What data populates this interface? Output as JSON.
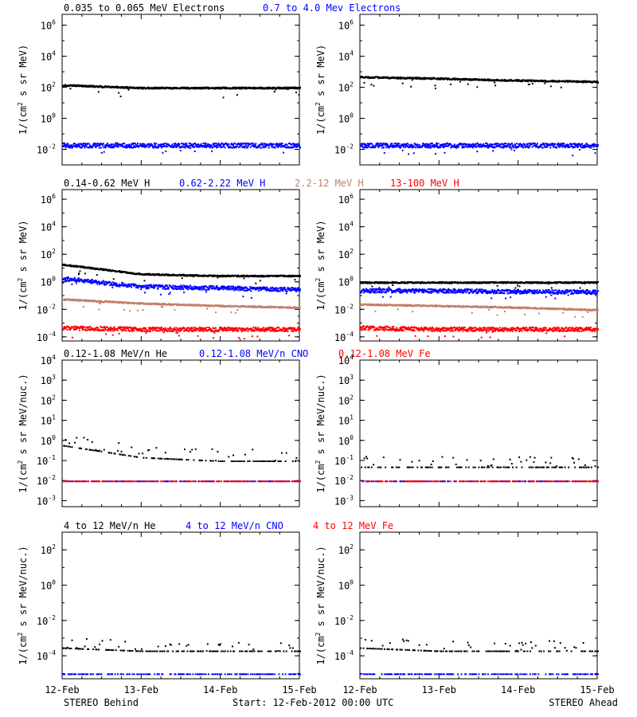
{
  "colors": {
    "black": "#000000",
    "blue": "#0000ff",
    "tan": "#c47f6a",
    "red": "#ff0000"
  },
  "rows": [
    {
      "legend": [
        {
          "text": "0.035 to 0.065 MeV Electrons",
          "color": "black"
        },
        {
          "text": "0.7 to 4.0 Mev Electrons",
          "color": "blue"
        }
      ],
      "ylabel_html": "1/(cm<tspan dy=\"-5\" font-size=\"8\">2</tspan><tspan dy=\"5\"> s sr MeV)</tspan>",
      "ylabel_plain": "1/(cm2 s sr MeV)",
      "ticks": [
        {
          "base": "10",
          "exp": "6",
          "log": 6
        },
        {
          "base": "10",
          "exp": "4",
          "log": 4
        },
        {
          "base": "10",
          "exp": "2",
          "log": 2
        },
        {
          "base": "10",
          "exp": "0",
          "log": 0
        },
        {
          "base": "10",
          "exp": "-2",
          "log": -2
        }
      ]
    },
    {
      "legend": [
        {
          "text": "0.14-0.62 MeV H",
          "color": "black"
        },
        {
          "text": "0.62-2.22 MeV H",
          "color": "blue"
        },
        {
          "text": "2.2-12 MeV H",
          "color": "tan"
        },
        {
          "text": "13-100 MeV H",
          "color": "red"
        }
      ],
      "ylabel_plain": "1/(cm2 s sr MeV)",
      "ticks": [
        {
          "base": "10",
          "exp": "6",
          "log": 6
        },
        {
          "base": "10",
          "exp": "4",
          "log": 4
        },
        {
          "base": "10",
          "exp": "2",
          "log": 2
        },
        {
          "base": "10",
          "exp": "0",
          "log": 0
        },
        {
          "base": "10",
          "exp": "-2",
          "log": -2
        },
        {
          "base": "10",
          "exp": "-4",
          "log": -4
        }
      ]
    },
    {
      "legend": [
        {
          "text": "0.12-1.08 MeV/n He",
          "color": "black"
        },
        {
          "text": "0.12-1.08 MeV/n CNO",
          "color": "blue"
        },
        {
          "text": "0.12-1.08 MeV Fe",
          "color": "red"
        }
      ],
      "ylabel_plain": "1/(cm2 s sr MeV/nuc.)",
      "ticks": [
        {
          "base": "10",
          "exp": "4",
          "log": 4
        },
        {
          "base": "10",
          "exp": "3",
          "log": 3
        },
        {
          "base": "10",
          "exp": "2",
          "log": 2
        },
        {
          "base": "10",
          "exp": "1",
          "log": 1
        },
        {
          "base": "10",
          "exp": "0",
          "log": 0
        },
        {
          "base": "10",
          "exp": "-1",
          "log": -1
        },
        {
          "base": "10",
          "exp": "-2",
          "log": -2
        },
        {
          "base": "10",
          "exp": "-3",
          "log": -3
        }
      ]
    },
    {
      "legend": [
        {
          "text": "4 to 12 MeV/n He",
          "color": "black"
        },
        {
          "text": "4 to 12 MeV/n CNO",
          "color": "blue"
        },
        {
          "text": "4 to 12 MeV Fe",
          "color": "red"
        }
      ],
      "ylabel_plain": "1/(cm2 s sr MeV/nuc.)",
      "ticks": [
        {
          "base": "10",
          "exp": "2",
          "log": 2
        },
        {
          "base": "10",
          "exp": "0",
          "log": 0
        },
        {
          "base": "10",
          "exp": "-2",
          "log": -2
        },
        {
          "base": "10",
          "exp": "-4",
          "log": -4
        }
      ]
    }
  ],
  "x_ticks": [
    "12-Feb",
    "13-Feb",
    "14-Feb",
    "15-Feb"
  ],
  "footer": {
    "left": "STEREO Behind",
    "center": "Start: 12-Feb-2012 00:00 UTC",
    "right": "STEREO Ahead"
  },
  "chart_data": [
    {
      "type": "scatter",
      "title": "",
      "xlabel": "",
      "ylabel": "1/(cm2 s sr MeV)",
      "yscale": "log",
      "ylim": [
        0.001,
        5000000
      ],
      "x": [
        "12-Feb",
        "13-Feb",
        "14-Feb",
        "15-Feb"
      ],
      "panels": [
        {
          "name": "STEREO Behind",
          "series": [
            {
              "name": "0.035 to 0.065 MeV Electrons",
              "color": "black",
              "points": [
                [
                  "12-Feb",
                  150
                ],
                [
                  "13-Feb",
                  100
                ],
                [
                  "14-Feb",
                  100
                ],
                [
                  "15-Feb",
                  100
                ]
              ]
            },
            {
              "name": "0.7 to 4.0 Mev Electrons",
              "color": "blue",
              "points": [
                [
                  "12-Feb",
                  0.02
                ],
                [
                  "13-Feb",
                  0.02
                ],
                [
                  "14-Feb",
                  0.02
                ],
                [
                  "15-Feb",
                  0.02
                ]
              ]
            }
          ]
        },
        {
          "name": "STEREO Ahead",
          "series": [
            {
              "name": "0.035 to 0.065 MeV Electrons",
              "color": "black",
              "points": [
                [
                  "12-Feb",
                  500
                ],
                [
                  "13-Feb",
                  400
                ],
                [
                  "14-Feb",
                  300
                ],
                [
                  "15-Feb",
                  250
                ]
              ]
            },
            {
              "name": "0.7 to 4.0 Mev Electrons",
              "color": "blue",
              "points": [
                [
                  "12-Feb",
                  0.02
                ],
                [
                  "13-Feb",
                  0.02
                ],
                [
                  "14-Feb",
                  0.02
                ],
                [
                  "15-Feb",
                  0.02
                ]
              ]
            }
          ]
        }
      ]
    },
    {
      "type": "scatter",
      "title": "",
      "xlabel": "",
      "ylabel": "1/(cm2 s sr MeV)",
      "yscale": "log",
      "ylim": [
        5e-05,
        5000000
      ],
      "x": [
        "12-Feb",
        "13-Feb",
        "14-Feb",
        "15-Feb"
      ],
      "panels": [
        {
          "name": "STEREO Behind",
          "series": [
            {
              "name": "0.14-0.62 MeV H",
              "color": "black",
              "points": [
                [
                  "12-Feb",
                  20
                ],
                [
                  "13-Feb",
                  4
                ],
                [
                  "14-Feb",
                  3
                ],
                [
                  "15-Feb",
                  3
                ]
              ]
            },
            {
              "name": "0.62-2.22 MeV H",
              "color": "blue",
              "points": [
                [
                  "12-Feb",
                  2
                ],
                [
                  "13-Feb",
                  0.5
                ],
                [
                  "14-Feb",
                  0.4
                ],
                [
                  "15-Feb",
                  0.3
                ]
              ]
            },
            {
              "name": "2.2-12 MeV H",
              "color": "tan",
              "points": [
                [
                  "12-Feb",
                  0.06
                ],
                [
                  "13-Feb",
                  0.03
                ],
                [
                  "14-Feb",
                  0.02
                ],
                [
                  "15-Feb",
                  0.015
                ]
              ]
            },
            {
              "name": "13-100 MeV H",
              "color": "red",
              "points": [
                [
                  "12-Feb",
                  0.0005
                ],
                [
                  "13-Feb",
                  0.0004
                ],
                [
                  "14-Feb",
                  0.0004
                ],
                [
                  "15-Feb",
                  0.0004
                ]
              ]
            }
          ]
        },
        {
          "name": "STEREO Ahead",
          "series": [
            {
              "name": "0.14-0.62 MeV H",
              "color": "black",
              "points": [
                [
                  "12-Feb",
                  1
                ],
                [
                  "13-Feb",
                  1
                ],
                [
                  "14-Feb",
                  1
                ],
                [
                  "15-Feb",
                  1
                ]
              ]
            },
            {
              "name": "0.62-2.22 MeV H",
              "color": "blue",
              "points": [
                [
                  "12-Feb",
                  0.25
                ],
                [
                  "13-Feb",
                  0.25
                ],
                [
                  "14-Feb",
                  0.22
                ],
                [
                  "15-Feb",
                  0.2
                ]
              ]
            },
            {
              "name": "2.2-12 MeV H",
              "color": "tan",
              "points": [
                [
                  "12-Feb",
                  0.025
                ],
                [
                  "13-Feb",
                  0.02
                ],
                [
                  "14-Feb",
                  0.015
                ],
                [
                  "15-Feb",
                  0.01
                ]
              ]
            },
            {
              "name": "13-100 MeV H",
              "color": "red",
              "points": [
                [
                  "12-Feb",
                  0.0005
                ],
                [
                  "13-Feb",
                  0.0004
                ],
                [
                  "14-Feb",
                  0.0004
                ],
                [
                  "15-Feb",
                  0.0004
                ]
              ]
            }
          ]
        }
      ]
    },
    {
      "type": "scatter",
      "title": "",
      "xlabel": "",
      "ylabel": "1/(cm2 s sr MeV/nuc.)",
      "yscale": "log",
      "ylim": [
        0.0005,
        10000
      ],
      "x": [
        "12-Feb",
        "13-Feb",
        "14-Feb",
        "15-Feb"
      ],
      "panels": [
        {
          "name": "STEREO Behind",
          "series": [
            {
              "name": "0.12-1.08 MeV/n He",
              "color": "black",
              "points": [
                [
                  "12-Feb",
                  0.6
                ],
                [
                  "13-Feb",
                  0.15
                ],
                [
                  "14-Feb",
                  0.1
                ],
                [
                  "15-Feb",
                  0.1
                ]
              ]
            },
            {
              "name": "0.12-1.08 MeV/n CNO",
              "color": "blue",
              "points": [
                [
                  "12-Feb",
                  0.01
                ],
                [
                  "13-Feb",
                  0.01
                ],
                [
                  "14-Feb",
                  0.01
                ],
                [
                  "15-Feb",
                  0.01
                ]
              ]
            },
            {
              "name": "0.12-1.08 MeV Fe",
              "color": "red",
              "points": [
                [
                  "12-Feb",
                  0.01
                ],
                [
                  "13-Feb",
                  0.01
                ],
                [
                  "14-Feb",
                  0.01
                ],
                [
                  "15-Feb",
                  0.01
                ]
              ]
            }
          ]
        },
        {
          "name": "STEREO Ahead",
          "series": [
            {
              "name": "0.12-1.08 MeV/n He",
              "color": "black",
              "points": [
                [
                  "12-Feb",
                  0.05
                ],
                [
                  "13-Feb",
                  0.05
                ],
                [
                  "14-Feb",
                  0.05
                ],
                [
                  "15-Feb",
                  0.05
                ]
              ]
            },
            {
              "name": "0.12-1.08 MeV/n CNO",
              "color": "blue",
              "points": [
                [
                  "12-Feb",
                  0.01
                ],
                [
                  "13-Feb",
                  0.01
                ],
                [
                  "14-Feb",
                  0.01
                ],
                [
                  "15-Feb",
                  0.01
                ]
              ]
            },
            {
              "name": "0.12-1.08 MeV Fe",
              "color": "red",
              "points": [
                [
                  "12-Feb",
                  0.01
                ],
                [
                  "13-Feb",
                  0.01
                ],
                [
                  "14-Feb",
                  0.01
                ],
                [
                  "15-Feb",
                  0.01
                ]
              ]
            }
          ]
        }
      ]
    },
    {
      "type": "scatter",
      "title": "",
      "xlabel": "",
      "ylabel": "1/(cm2 s sr MeV/nuc.)",
      "yscale": "log",
      "ylim": [
        5e-06,
        1000
      ],
      "x": [
        "12-Feb",
        "13-Feb",
        "14-Feb",
        "15-Feb"
      ],
      "panels": [
        {
          "name": "STEREO Behind",
          "series": [
            {
              "name": "4 to 12 MeV/n He",
              "color": "black",
              "points": [
                [
                  "12-Feb",
                  0.0003
                ],
                [
                  "13-Feb",
                  0.0002
                ],
                [
                  "14-Feb",
                  0.0002
                ],
                [
                  "15-Feb",
                  0.0002
                ]
              ]
            },
            {
              "name": "4 to 12 MeV/n CNO",
              "color": "blue",
              "points": [
                [
                  "12-Feb",
                  1e-05
                ],
                [
                  "13-Feb",
                  1e-05
                ],
                [
                  "14-Feb",
                  1e-05
                ],
                [
                  "15-Feb",
                  1e-05
                ]
              ]
            }
          ]
        },
        {
          "name": "STEREO Ahead",
          "series": [
            {
              "name": "4 to 12 MeV/n He",
              "color": "black",
              "points": [
                [
                  "12-Feb",
                  0.0003
                ],
                [
                  "13-Feb",
                  0.0002
                ],
                [
                  "14-Feb",
                  0.0002
                ],
                [
                  "15-Feb",
                  0.0002
                ]
              ]
            },
            {
              "name": "4 to 12 MeV/n CNO",
              "color": "blue",
              "points": [
                [
                  "12-Feb",
                  1e-05
                ],
                [
                  "13-Feb",
                  1e-05
                ],
                [
                  "14-Feb",
                  1e-05
                ],
                [
                  "15-Feb",
                  1e-05
                ]
              ]
            }
          ]
        }
      ]
    }
  ]
}
